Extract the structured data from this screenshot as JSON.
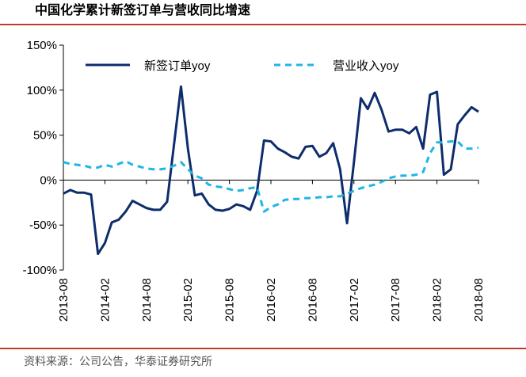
{
  "chart_data": {
    "type": "line",
    "title": "中国化学累计新签订单与营收同比增速",
    "source": "资料来源：公司公告，华泰证券研究所",
    "categories": [
      "2013-08",
      null,
      null,
      null,
      null,
      null,
      "2014-02",
      null,
      null,
      null,
      null,
      null,
      "2014-08",
      null,
      null,
      null,
      null,
      null,
      "2015-02",
      null,
      null,
      null,
      null,
      null,
      "2015-08",
      null,
      null,
      null,
      null,
      null,
      "2016-02",
      null,
      null,
      null,
      null,
      null,
      "2016-08",
      null,
      null,
      null,
      null,
      null,
      "2017-02",
      null,
      null,
      null,
      null,
      null,
      "2017-08",
      null,
      null,
      null,
      null,
      null,
      "2018-02",
      null,
      null,
      null,
      null,
      null,
      "2018-08"
    ],
    "series": [
      {
        "name": "新签订单yoy",
        "color": "#0d2d6c",
        "dash": false,
        "values": [
          -15,
          -11,
          -14,
          -14,
          -16,
          -82,
          -70,
          -47,
          -44,
          -35,
          -23,
          -27,
          -31,
          -33,
          -33,
          -24,
          40,
          104,
          35,
          -17,
          -15,
          -27,
          -33,
          -34,
          -32,
          -27,
          -29,
          -33,
          -12,
          44,
          43,
          35,
          31,
          26,
          24,
          37,
          38,
          26,
          30,
          41,
          12,
          -48,
          20,
          91,
          79,
          97,
          78,
          54,
          56,
          56,
          52,
          59,
          35,
          95,
          98,
          6,
          12,
          62,
          72,
          81,
          76
        ]
      },
      {
        "name": "营业收入yoy",
        "color": "#1fb6e6",
        "dash": true,
        "values": [
          20,
          18,
          17,
          16,
          14,
          14,
          17,
          15,
          18,
          21,
          17,
          15,
          13,
          12,
          12,
          13,
          16,
          20,
          12,
          5,
          2,
          -5,
          -7,
          -8,
          -10,
          -12,
          -11,
          -9,
          -8,
          -35,
          -30,
          -27,
          -22,
          -21,
          -21,
          -20,
          -20,
          -19,
          -19,
          -18,
          -18,
          -15,
          -12,
          -9,
          -7,
          -5,
          -2,
          2,
          4,
          5,
          5,
          6,
          9,
          30,
          42,
          42,
          43,
          43,
          35,
          35,
          36
        ]
      }
    ],
    "ylim": [
      -100,
      150
    ],
    "yticks": [
      {
        "value": -100,
        "label": "-100%"
      },
      {
        "value": -50,
        "label": "-50%"
      },
      {
        "value": 0,
        "label": "0%"
      },
      {
        "value": 50,
        "label": "50%"
      },
      {
        "value": 100,
        "label": "100%"
      },
      {
        "value": 150,
        "label": "150%"
      }
    ],
    "grid": false
  }
}
